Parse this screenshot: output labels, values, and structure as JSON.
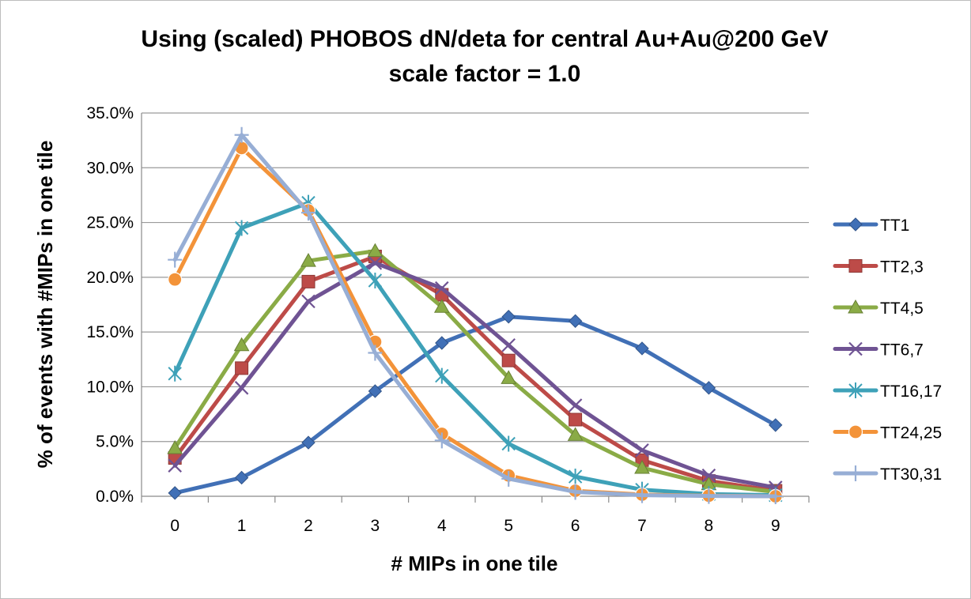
{
  "chart_data": {
    "type": "line",
    "title": "Using (scaled) PHOBOS dN/deta for central Au+Au@200 GeV",
    "subtitle": "scale factor = 1.0",
    "xlabel": "# MIPs in one tile",
    "ylabel": "% of events with #MIPs in one tile",
    "x": [
      0,
      1,
      2,
      3,
      4,
      5,
      6,
      7,
      8,
      9
    ],
    "ylim": [
      0,
      35
    ],
    "yticks": [
      "0.0%",
      "5.0%",
      "10.0%",
      "15.0%",
      "20.0%",
      "25.0%",
      "30.0%",
      "35.0%"
    ],
    "grid": "horizontal",
    "legend_position": "right",
    "series": [
      {
        "name": "TT1",
        "color": "#4170b6",
        "marker": "diamond",
        "values": [
          0.3,
          1.7,
          4.9,
          9.6,
          14.0,
          16.4,
          16.0,
          13.5,
          9.9,
          6.5
        ]
      },
      {
        "name": "TT2,3",
        "color": "#bd4b48",
        "marker": "square",
        "values": [
          3.5,
          11.7,
          19.6,
          21.9,
          18.4,
          12.4,
          7.0,
          3.3,
          1.4,
          0.5
        ]
      },
      {
        "name": "TT4,5",
        "color": "#8aab46",
        "marker": "triangle",
        "values": [
          4.4,
          13.8,
          21.5,
          22.4,
          17.3,
          10.8,
          5.6,
          2.6,
          1.1,
          0.4
        ]
      },
      {
        "name": "TT6,7",
        "color": "#6f5393",
        "marker": "x",
        "values": [
          2.8,
          9.9,
          17.8,
          21.3,
          19.0,
          13.8,
          8.3,
          4.2,
          1.9,
          0.8
        ]
      },
      {
        "name": "TT16,17",
        "color": "#3ea1b8",
        "marker": "star",
        "values": [
          11.2,
          24.5,
          26.8,
          19.7,
          11.0,
          4.8,
          1.8,
          0.6,
          0.2,
          0.1
        ]
      },
      {
        "name": "TT24,25",
        "color": "#f39339",
        "marker": "circle",
        "values": [
          19.8,
          31.8,
          26.1,
          14.1,
          5.7,
          1.9,
          0.5,
          0.15,
          0.05,
          0.0
        ]
      },
      {
        "name": "TT30,31",
        "color": "#97aed5",
        "marker": "plus",
        "values": [
          21.6,
          33.0,
          25.9,
          13.1,
          5.1,
          1.6,
          0.4,
          0.1,
          0.03,
          0.0
        ]
      }
    ]
  }
}
